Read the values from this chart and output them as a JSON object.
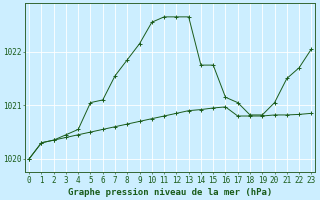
{
  "xlabel": "Graphe pression niveau de la mer (hPa)",
  "background_color": "#cceeff",
  "plot_bg_color": "#cceeff",
  "grid_color": "#aaddcc",
  "line_color": "#1a5c1a",
  "hours": [
    0,
    1,
    2,
    3,
    4,
    5,
    6,
    7,
    8,
    9,
    10,
    11,
    12,
    13,
    14,
    15,
    16,
    17,
    18,
    19,
    20,
    21,
    22,
    23
  ],
  "series1": [
    1020.0,
    1020.3,
    1020.35,
    1020.4,
    1020.45,
    1020.5,
    1020.55,
    1020.6,
    1020.65,
    1020.7,
    1020.75,
    1020.8,
    1020.85,
    1020.9,
    1020.92,
    1020.95,
    1020.97,
    1020.8,
    1020.8,
    1020.8,
    1020.82,
    1020.82,
    1020.83,
    1020.85
  ],
  "series2": [
    1020.0,
    1020.3,
    1020.35,
    1020.45,
    1020.55,
    1021.05,
    1021.1,
    1021.55,
    1021.85,
    1022.15,
    1022.55,
    1022.65,
    1022.65,
    1022.65,
    1021.75,
    1021.75,
    1021.15,
    1021.05,
    1020.82,
    1020.82,
    1021.05,
    1021.5,
    1021.7,
    1022.05
  ],
  "ylim": [
    1019.75,
    1022.9
  ],
  "yticks": [
    1020,
    1021,
    1022
  ],
  "xticks": [
    0,
    1,
    2,
    3,
    4,
    5,
    6,
    7,
    8,
    9,
    10,
    11,
    12,
    13,
    14,
    15,
    16,
    17,
    18,
    19,
    20,
    21,
    22,
    23
  ],
  "tick_fontsize": 5.5,
  "xlabel_fontsize": 6.5,
  "border_color": "#336633",
  "figsize": [
    3.2,
    2.0
  ],
  "dpi": 100
}
